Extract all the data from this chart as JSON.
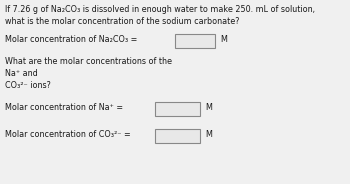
{
  "background_color": "#c8c8c8",
  "inner_bg": "#f0f0f0",
  "title_line1": "If 7.26 g of Na₂CO₃ is dissolved in enough water to make 250. mL of solution,",
  "title_line2": "what is the molar concentration of the sodium carbonate?",
  "line3": "Molar concentration of Na₂CO₃ =",
  "line3_unit": "M",
  "line4": "What are the molar concentrations of the",
  "line5": "Na⁺ and",
  "line6": "CO₃²⁻ ions?",
  "line7": "Molar concentration of Na⁺ =",
  "line7_unit": "M",
  "line8": "Molar concentration of CO₃²⁻ =",
  "line8_unit": "M",
  "box_facecolor": "#e8e8e8",
  "box_edgecolor": "#888888",
  "text_color": "#1a1a1a",
  "font_size": 5.8
}
